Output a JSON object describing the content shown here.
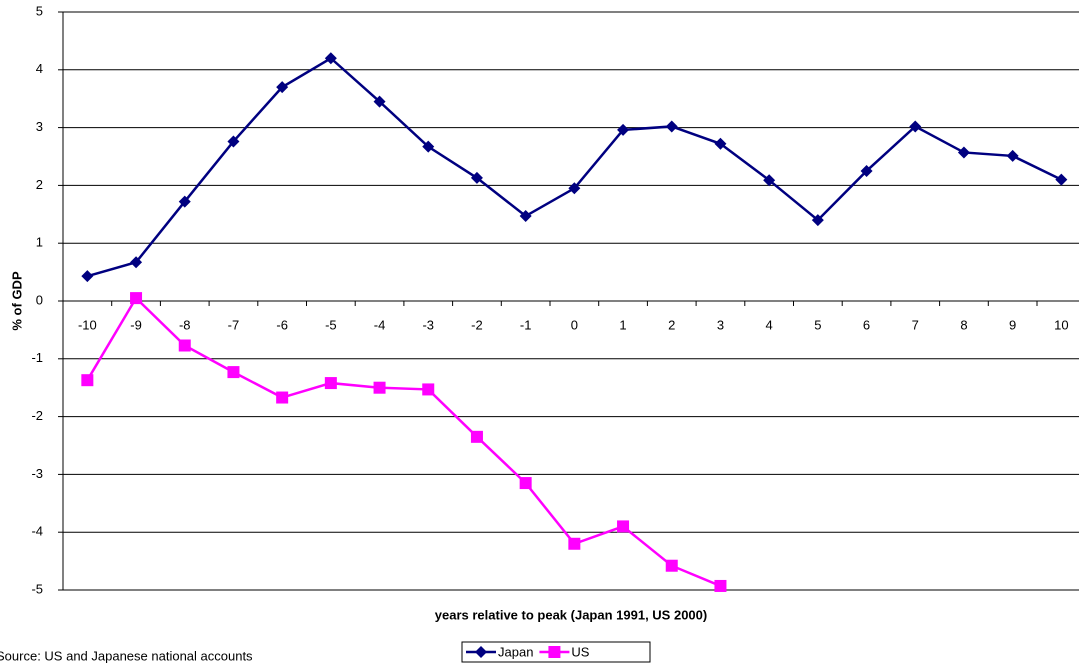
{
  "chart_data": {
    "type": "line",
    "y_label": "% of GDP",
    "x_label": "years relative to peak (Japan 1991, US 2000)",
    "source": "Source: US and Japanese national accounts",
    "categories": [
      -10,
      -9,
      -8,
      -7,
      -6,
      -5,
      -4,
      -3,
      -2,
      -1,
      0,
      1,
      2,
      3,
      4,
      5,
      6,
      7,
      8,
      9,
      10
    ],
    "series": [
      {
        "name": "Japan",
        "color": "#000080",
        "marker": "diamond",
        "values": [
          0.43,
          0.67,
          1.72,
          2.76,
          3.7,
          4.2,
          3.45,
          2.67,
          2.13,
          1.47,
          1.95,
          2.96,
          3.02,
          2.72,
          2.09,
          1.4,
          2.25,
          3.02,
          2.57,
          2.51,
          2.1
        ]
      },
      {
        "name": "US",
        "color": "#ff00ff",
        "marker": "square",
        "values": [
          -1.37,
          0.05,
          -0.77,
          -1.23,
          -1.67,
          -1.42,
          -1.5,
          -1.53,
          -2.35,
          -3.15,
          -4.2,
          -3.9,
          -4.58,
          -4.93,
          null,
          null,
          null,
          null,
          null,
          null,
          null
        ]
      }
    ],
    "ylim": [
      -5,
      5
    ],
    "yticks": [
      -5,
      -4,
      -3,
      -2,
      -1,
      0,
      1,
      2,
      3,
      4,
      5
    ],
    "grid": true
  }
}
